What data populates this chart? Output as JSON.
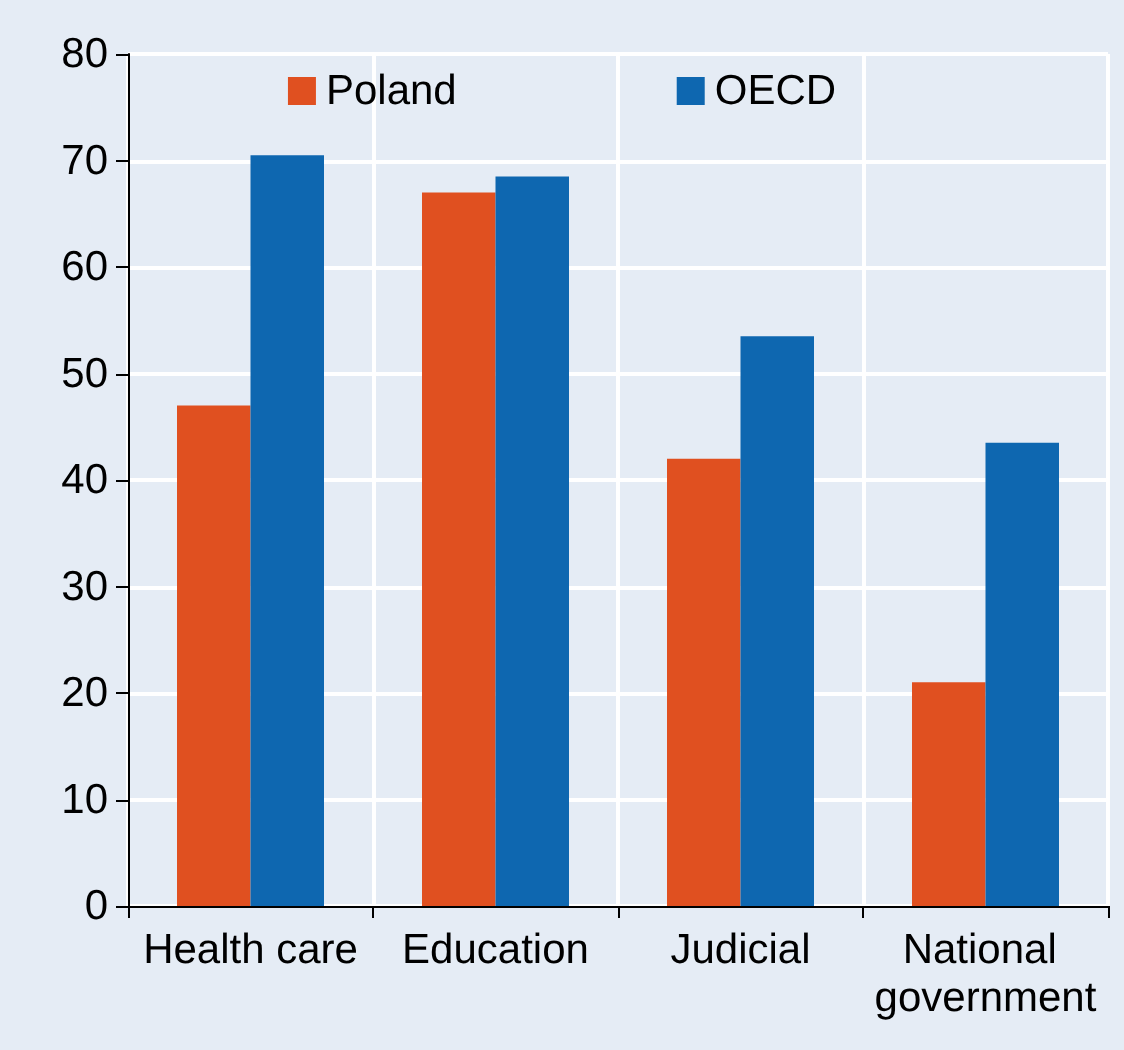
{
  "chart_data": {
    "type": "bar",
    "categories": [
      "Health care",
      "Education",
      "Judicial",
      "National government"
    ],
    "series": [
      {
        "name": "Poland",
        "color": "#e05020",
        "values": [
          47,
          67,
          42,
          21
        ]
      },
      {
        "name": "OECD",
        "color": "#0e67b0",
        "values": [
          70.5,
          68.5,
          53.5,
          43.5
        ]
      }
    ],
    "ylim": [
      0,
      80
    ],
    "yticks": [
      0,
      10,
      20,
      30,
      40,
      50,
      60,
      70,
      80
    ],
    "grid": true,
    "legend": "top"
  }
}
